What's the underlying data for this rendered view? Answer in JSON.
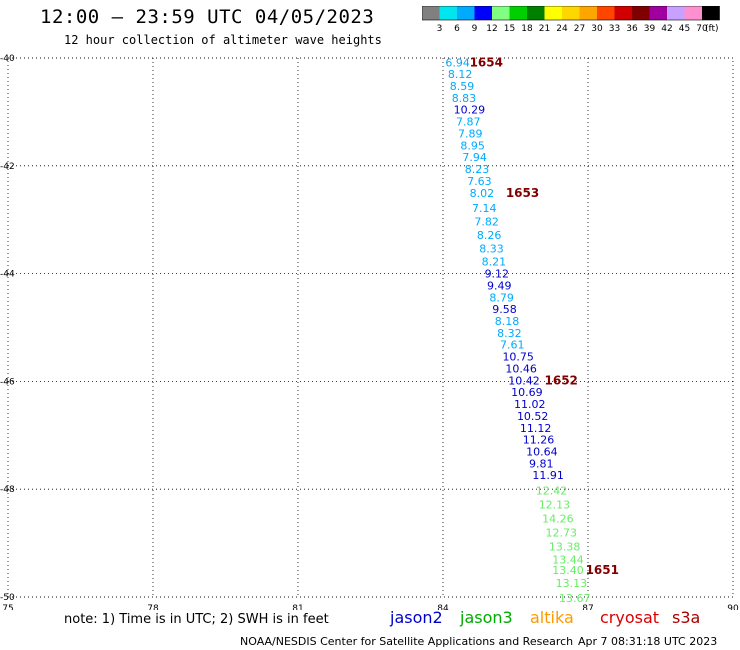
{
  "header": {
    "title": "12:00 – 23:59 UTC 04/05/2023",
    "subtitle": "12 hour collection of altimeter wave heights"
  },
  "colorbar": {
    "labels": [
      "3",
      "6",
      "9",
      "12",
      "15",
      "18",
      "21",
      "24",
      "27",
      "30",
      "33",
      "36",
      "39",
      "42",
      "45",
      "70"
    ],
    "unit": "(ft)",
    "colors": [
      "#808080",
      "#00e5ee",
      "#00aaff",
      "#0000ff",
      "#80ff80",
      "#00d000",
      "#008000",
      "#ffff00",
      "#ffd700",
      "#ffa500",
      "#ff4500",
      "#d00000",
      "#800000",
      "#a000a0",
      "#c8a0ff",
      "#ff90d0",
      "#000000"
    ]
  },
  "chart_data": {
    "type": "scatter",
    "xlim": [
      75,
      90
    ],
    "ylim": [
      -50,
      -40
    ],
    "x_ticks": [
      75,
      78,
      81,
      84,
      87,
      90
    ],
    "y_ticks": [
      -40,
      -42,
      -44,
      -46,
      -48,
      -50
    ],
    "x_tick_labels": [
      "75",
      "78",
      "81",
      "84",
      "87",
      "90"
    ],
    "y_tick_labels": [
      "-40",
      "-42",
      "-44",
      "-46",
      "-48",
      "-50"
    ],
    "grid": true,
    "points": [
      {
        "lon": 84.05,
        "lat": -40.08,
        "value": "6.94",
        "color": "#00aaff"
      },
      {
        "lon": 84.1,
        "lat": -40.3,
        "value": "8.12",
        "color": "#00aaff"
      },
      {
        "lon": 84.14,
        "lat": -40.52,
        "value": "8.59",
        "color": "#00aaff"
      },
      {
        "lon": 84.18,
        "lat": -40.74,
        "value": "8.83",
        "color": "#00aaff"
      },
      {
        "lon": 84.22,
        "lat": -40.96,
        "value": "10.29",
        "color": "#0000cc"
      },
      {
        "lon": 84.27,
        "lat": -41.18,
        "value": "7.87",
        "color": "#00aaff"
      },
      {
        "lon": 84.31,
        "lat": -41.4,
        "value": "7.89",
        "color": "#00aaff"
      },
      {
        "lon": 84.36,
        "lat": -41.62,
        "value": "8.95",
        "color": "#00aaff"
      },
      {
        "lon": 84.4,
        "lat": -41.84,
        "value": "7.94",
        "color": "#00aaff"
      },
      {
        "lon": 84.45,
        "lat": -42.06,
        "value": "8.23",
        "color": "#00aaff"
      },
      {
        "lon": 84.5,
        "lat": -42.28,
        "value": "7.63",
        "color": "#00aaff"
      },
      {
        "lon": 84.55,
        "lat": -42.5,
        "value": "8.02",
        "color": "#00aaff"
      },
      {
        "lon": 84.6,
        "lat": -42.78,
        "value": "7.14",
        "color": "#00aaff"
      },
      {
        "lon": 84.65,
        "lat": -43.03,
        "value": "7.82",
        "color": "#00aaff"
      },
      {
        "lon": 84.7,
        "lat": -43.28,
        "value": "8.26",
        "color": "#00aaff"
      },
      {
        "lon": 84.75,
        "lat": -43.53,
        "value": "8.33",
        "color": "#00aaff"
      },
      {
        "lon": 84.8,
        "lat": -43.78,
        "value": "8.21",
        "color": "#00aaff"
      },
      {
        "lon": 84.86,
        "lat": -44.0,
        "value": "9.12",
        "color": "#0000cc"
      },
      {
        "lon": 84.91,
        "lat": -44.22,
        "value": "9.49",
        "color": "#0000cc"
      },
      {
        "lon": 84.96,
        "lat": -44.44,
        "value": "8.79",
        "color": "#00aaff"
      },
      {
        "lon": 85.02,
        "lat": -44.66,
        "value": "9.58",
        "color": "#0000cc"
      },
      {
        "lon": 85.07,
        "lat": -44.88,
        "value": "8.18",
        "color": "#00aaff"
      },
      {
        "lon": 85.12,
        "lat": -45.1,
        "value": "8.32",
        "color": "#00aaff"
      },
      {
        "lon": 85.18,
        "lat": -45.32,
        "value": "7.61",
        "color": "#00aaff"
      },
      {
        "lon": 85.23,
        "lat": -45.54,
        "value": "10.75",
        "color": "#0000cc"
      },
      {
        "lon": 85.29,
        "lat": -45.76,
        "value": "10.46",
        "color": "#0000cc"
      },
      {
        "lon": 85.35,
        "lat": -45.98,
        "value": "10.42",
        "color": "#0000cc"
      },
      {
        "lon": 85.41,
        "lat": -46.2,
        "value": "10.69",
        "color": "#0000cc"
      },
      {
        "lon": 85.47,
        "lat": -46.42,
        "value": "11.02",
        "color": "#0000cc"
      },
      {
        "lon": 85.53,
        "lat": -46.64,
        "value": "10.52",
        "color": "#0000cc"
      },
      {
        "lon": 85.59,
        "lat": -46.86,
        "value": "11.12",
        "color": "#0000cc"
      },
      {
        "lon": 85.65,
        "lat": -47.08,
        "value": "11.26",
        "color": "#0000cc"
      },
      {
        "lon": 85.72,
        "lat": -47.3,
        "value": "10.64",
        "color": "#0000cc"
      },
      {
        "lon": 85.78,
        "lat": -47.52,
        "value": "9.81",
        "color": "#0000cc"
      },
      {
        "lon": 85.85,
        "lat": -47.74,
        "value": "11.91",
        "color": "#0000cc"
      },
      {
        "lon": 85.92,
        "lat": -48.02,
        "value": "12.42",
        "color": "#66ee66"
      },
      {
        "lon": 85.98,
        "lat": -48.28,
        "value": "12.13",
        "color": "#66ee66"
      },
      {
        "lon": 86.05,
        "lat": -48.54,
        "value": "14.26",
        "color": "#66ee66"
      },
      {
        "lon": 86.12,
        "lat": -48.8,
        "value": "12.73",
        "color": "#66ee66"
      },
      {
        "lon": 86.19,
        "lat": -49.06,
        "value": "13.38",
        "color": "#66ee66"
      },
      {
        "lon": 86.26,
        "lat": -49.3,
        "value": "13.44",
        "color": "#66ee66"
      },
      {
        "lon": 86.26,
        "lat": -49.5,
        "value": "13.40",
        "color": "#66ee66"
      },
      {
        "lon": 86.33,
        "lat": -49.74,
        "value": "13.13",
        "color": "#66ee66"
      },
      {
        "lon": 86.4,
        "lat": -50.02,
        "value": "13.67",
        "color": "#66ee66"
      }
    ],
    "time_labels": [
      {
        "lon": 84.55,
        "lat": -40.08,
        "text": "1654"
      },
      {
        "lon": 85.3,
        "lat": -42.5,
        "text": "1653"
      },
      {
        "lon": 86.1,
        "lat": -45.98,
        "text": "1652"
      },
      {
        "lon": 86.95,
        "lat": -49.5,
        "text": "1651"
      }
    ],
    "time_label_color": "#800000"
  },
  "notes": {
    "note": "note:  1) Time is in UTC;  2) SWH is in feet"
  },
  "satellites": [
    {
      "name": "jason2",
      "color": "#0000cc"
    },
    {
      "name": "jason3",
      "color": "#00aa00"
    },
    {
      "name": "altika",
      "color": "#ff9900"
    },
    {
      "name": "cryosat",
      "color": "#dd0000"
    },
    {
      "name": "s3a",
      "color": "#aa0000"
    }
  ],
  "footer": {
    "credit": "NOAA/NESDIS Center for Satellite Applications and Research",
    "date": "Apr  7 08:31:18 UTC 2023"
  }
}
